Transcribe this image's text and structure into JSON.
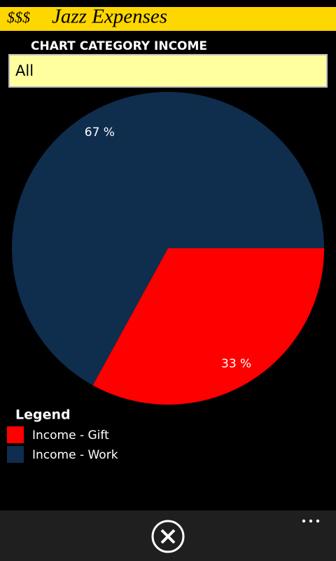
{
  "header": {
    "symbol": "$$$",
    "title": "Jazz Expenses"
  },
  "filter": {
    "label": "CHART CATEGORY INCOME",
    "value": "All"
  },
  "chart_data": {
    "type": "pie",
    "categories": [
      "Income - Gift",
      "Income - Work"
    ],
    "values": [
      33,
      67
    ],
    "value_labels": [
      "33 %",
      "67 %"
    ],
    "colors": [
      "#ff0000",
      "#0f2d4d"
    ],
    "legend_title": "Legend"
  }
}
